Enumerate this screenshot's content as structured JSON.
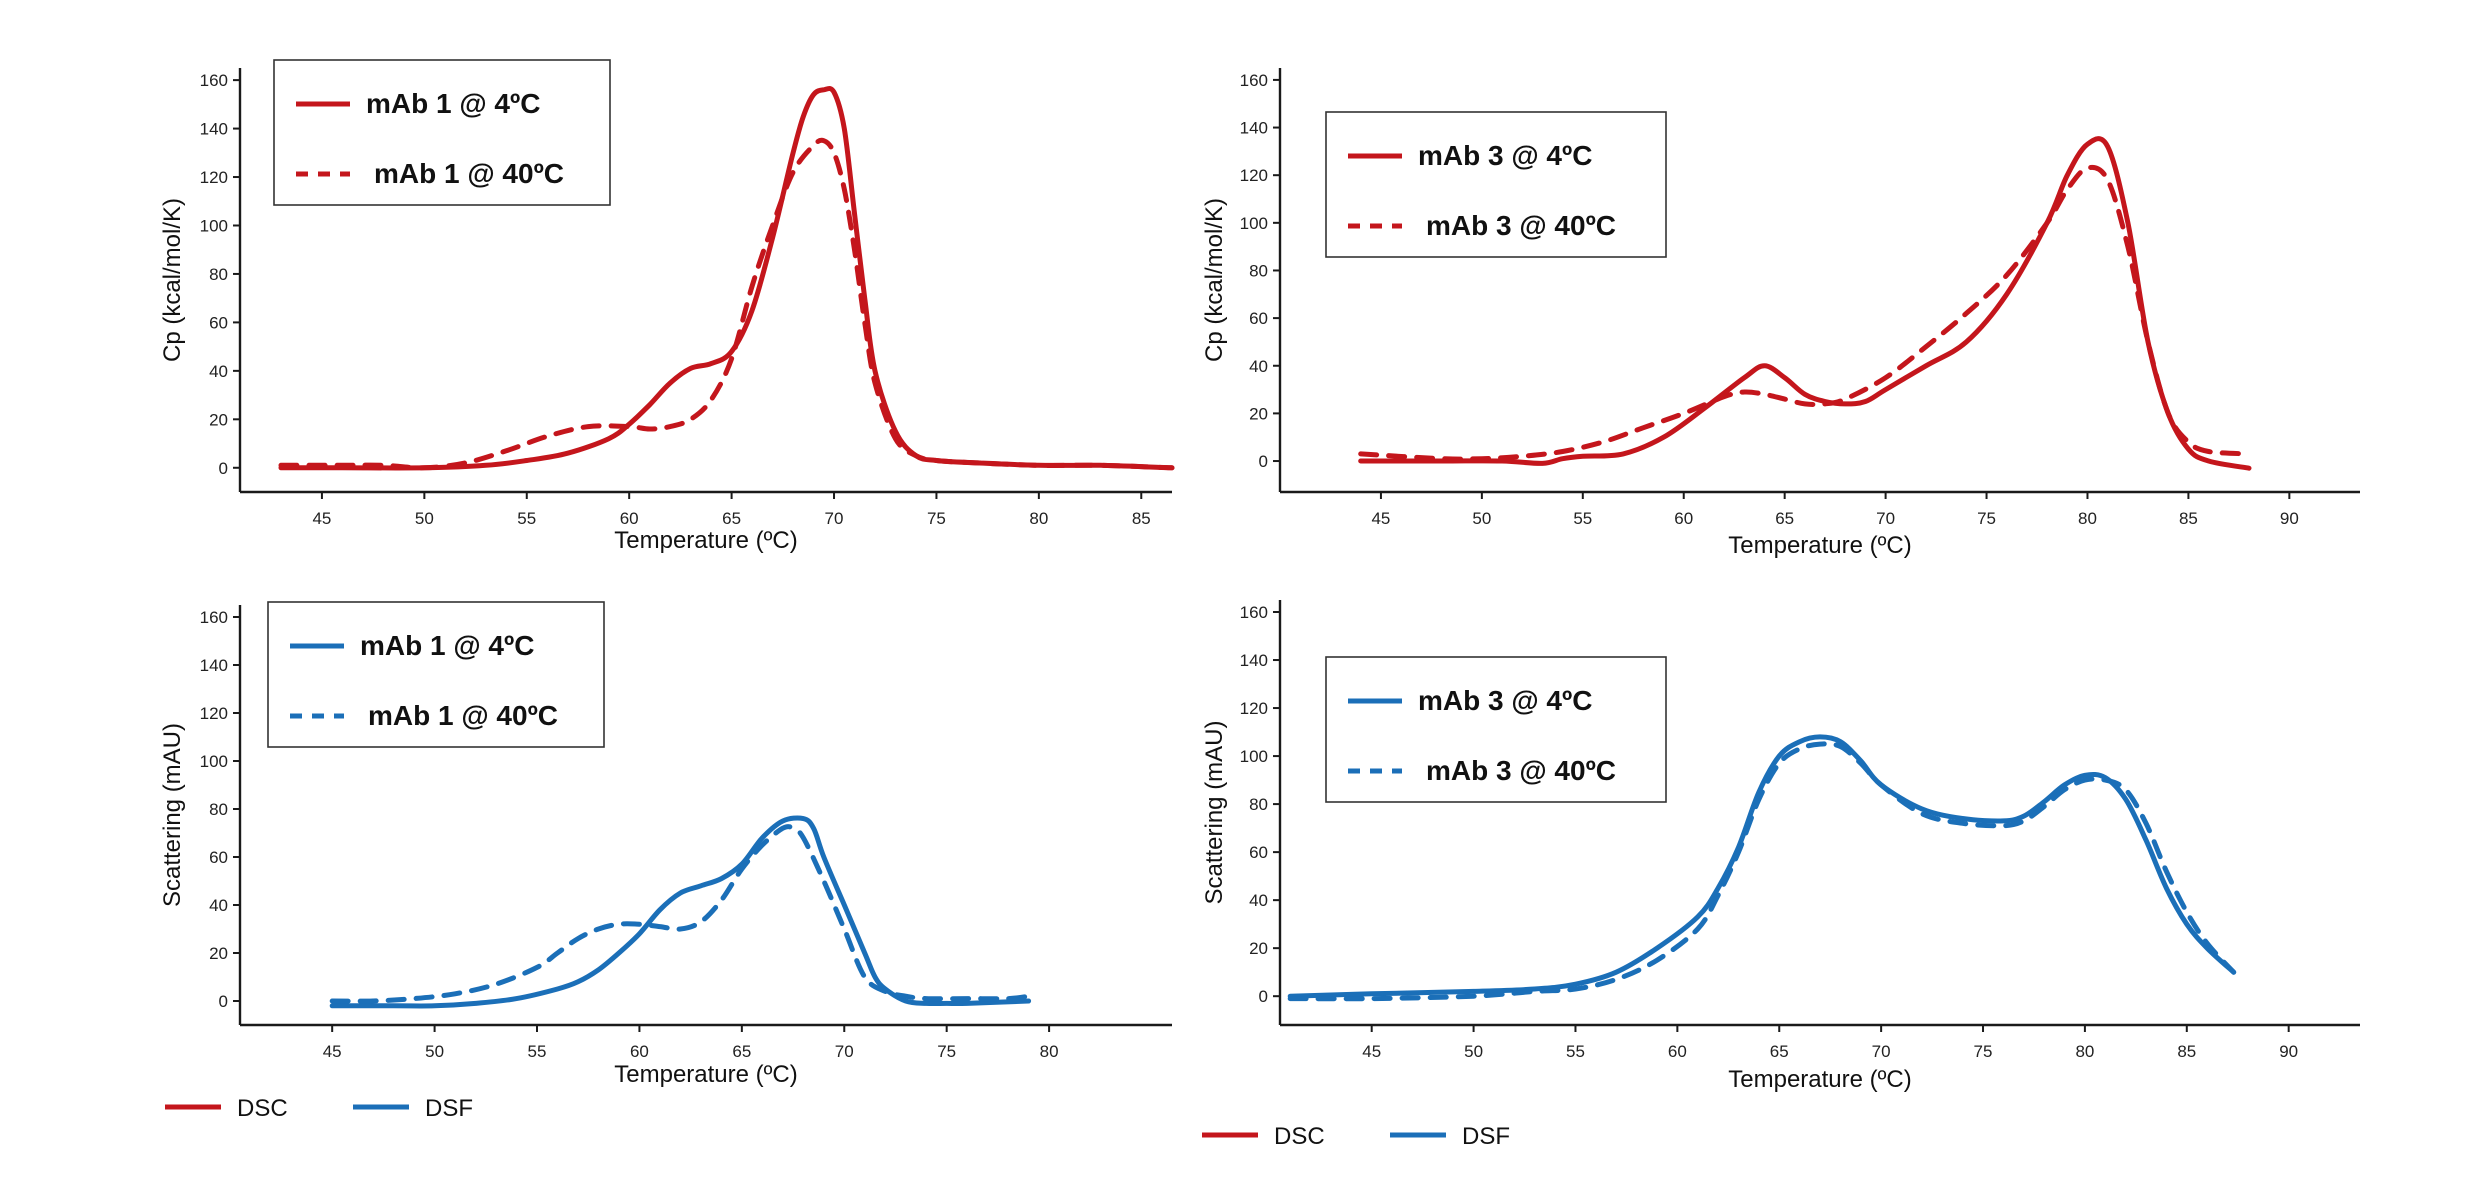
{
  "colors": {
    "dsc": "#c4161c",
    "dsf": "#1b6fb8"
  },
  "chart_data": [
    {
      "id": "p1",
      "type": "line",
      "method": "DSC",
      "xlabel": "Temperature (ºC)",
      "ylabel": "Cp (kcal/mol/K)",
      "xlim": [
        41,
        86.5
      ],
      "ylim": [
        -10,
        165
      ],
      "xticks": [
        45,
        50,
        55,
        60,
        65,
        70,
        75,
        80,
        85
      ],
      "yticks": [
        0,
        20,
        40,
        60,
        80,
        100,
        120,
        140,
        160
      ],
      "series": [
        {
          "name": "mAb 1 @ 4ºC",
          "style": "solid",
          "x": [
            43,
            46,
            50,
            53,
            55,
            57,
            59,
            60,
            61,
            62,
            63,
            64,
            65,
            66,
            67,
            68,
            68.5,
            69,
            69.5,
            70,
            70.5,
            71,
            71.5,
            72,
            73,
            74,
            75,
            77,
            80,
            83,
            86.5
          ],
          "y": [
            0,
            0,
            0,
            1,
            3,
            6,
            12,
            18,
            26,
            35,
            41,
            43,
            48,
            65,
            95,
            130,
            145,
            154,
            156,
            155,
            140,
            105,
            70,
            40,
            15,
            5,
            3,
            2,
            1,
            1,
            0
          ]
        },
        {
          "name": "mAb 1 @ 40ºC",
          "style": "dashed",
          "x": [
            43,
            46,
            48,
            50,
            52,
            54,
            56,
            58,
            60,
            61,
            62,
            63,
            64,
            65,
            66,
            67,
            68,
            69,
            69.5,
            70,
            70.5,
            71,
            71.5,
            72,
            73,
            74,
            75,
            77,
            80,
            83,
            86.5
          ],
          "y": [
            1,
            1,
            1,
            0,
            2,
            7,
            13,
            17,
            17,
            16,
            17,
            20,
            28,
            45,
            75,
            100,
            122,
            133,
            135,
            130,
            115,
            90,
            60,
            35,
            12,
            5,
            3,
            2,
            1,
            1,
            0
          ]
        }
      ],
      "legend": [
        "mAb 1 @ 4ºC",
        "mAb 1 @ 40ºC"
      ]
    },
    {
      "id": "p2",
      "type": "line",
      "method": "DSC",
      "xlabel": "Temperature (ºC)",
      "ylabel": "Cp (kcal/mol/K)",
      "xlim": [
        40,
        93.5
      ],
      "ylim": [
        -13,
        165
      ],
      "xticks": [
        45,
        50,
        55,
        60,
        65,
        70,
        75,
        80,
        85,
        90
      ],
      "yticks": [
        0,
        20,
        40,
        60,
        80,
        100,
        120,
        140,
        160
      ],
      "series": [
        {
          "name": "mAb 3 @ 4ºC",
          "style": "solid",
          "x": [
            44,
            48,
            51,
            53,
            54,
            55,
            57,
            59,
            61,
            63,
            64,
            65,
            66,
            67,
            68,
            69,
            70,
            72,
            74,
            76,
            78,
            79,
            80,
            81,
            82,
            83,
            84,
            85,
            86,
            88
          ],
          "y": [
            0,
            0,
            0,
            -1,
            1,
            2,
            3,
            10,
            22,
            35,
            40,
            35,
            28,
            25,
            24,
            25,
            30,
            40,
            50,
            70,
            100,
            120,
            133,
            132,
            100,
            50,
            20,
            5,
            0,
            -3
          ]
        },
        {
          "name": "mAb 3 @ 40ºC",
          "style": "dashed",
          "x": [
            44,
            48,
            50,
            52,
            54,
            56,
            58,
            60,
            62,
            63,
            64,
            65,
            66,
            67,
            68,
            70,
            72,
            74,
            76,
            78,
            79,
            80,
            81,
            82,
            83,
            84,
            85,
            86,
            88
          ],
          "y": [
            3,
            1,
            1,
            2,
            4,
            8,
            14,
            20,
            27,
            29,
            28,
            26,
            24,
            24,
            26,
            35,
            48,
            62,
            78,
            100,
            114,
            123,
            118,
            90,
            50,
            20,
            8,
            4,
            3
          ]
        }
      ],
      "legend": [
        "mAb 3 @ 4ºC",
        "mAb 3 @ 40ºC"
      ]
    },
    {
      "id": "p3",
      "type": "line",
      "method": "DSF",
      "xlabel": "Temperature (ºC)",
      "ylabel": "Scattering (mAU)",
      "xlim": [
        40.5,
        86
      ],
      "ylim": [
        -10,
        165
      ],
      "xticks": [
        45,
        50,
        55,
        60,
        65,
        70,
        75,
        80
      ],
      "yticks": [
        0,
        20,
        40,
        60,
        80,
        100,
        120,
        140,
        160
      ],
      "series": [
        {
          "name": "mAb 1 @ 4ºC",
          "style": "solid",
          "x": [
            45,
            48,
            50,
            52,
            54,
            56,
            57,
            58,
            59,
            60,
            61,
            62,
            63,
            64,
            65,
            66,
            67,
            68,
            68.5,
            69,
            70,
            71,
            71.5,
            72,
            73,
            74,
            75,
            76,
            79
          ],
          "y": [
            -2,
            -2,
            -2,
            -1,
            1,
            5,
            8,
            13,
            20,
            28,
            38,
            45,
            48,
            51,
            57,
            68,
            75,
            76,
            72,
            60,
            40,
            20,
            10,
            5,
            0,
            -1,
            -1,
            -1,
            0
          ]
        },
        {
          "name": "mAb 1 @ 40ºC",
          "style": "dashed",
          "x": [
            45,
            47,
            49,
            51,
            53,
            55,
            56,
            57,
            58,
            59,
            60,
            61,
            62,
            63,
            64,
            65,
            66,
            67,
            67.5,
            68,
            69,
            70,
            71,
            72,
            73,
            74,
            76,
            78,
            79
          ],
          "y": [
            0,
            0,
            1,
            3,
            7,
            14,
            20,
            26,
            30,
            32,
            32,
            31,
            30,
            33,
            42,
            55,
            65,
            72,
            72,
            68,
            50,
            30,
            10,
            4,
            2,
            1,
            1,
            1,
            2
          ]
        }
      ],
      "legend": [
        "mAb 1 @ 4ºC",
        "mAb 1 @ 40ºC"
      ]
    },
    {
      "id": "p4",
      "type": "line",
      "method": "DSF",
      "xlabel": "Temperature (ºC)",
      "ylabel": "Scattering (mAU)",
      "xlim": [
        40.5,
        93.5
      ],
      "ylim": [
        -12,
        165
      ],
      "xticks": [
        45,
        50,
        55,
        60,
        65,
        70,
        75,
        80,
        85,
        90
      ],
      "yticks": [
        0,
        20,
        40,
        60,
        80,
        100,
        120,
        140,
        160
      ],
      "series": [
        {
          "name": "mAb 3 @ 4ºC",
          "style": "solid",
          "x": [
            41,
            45,
            50,
            53,
            55,
            57,
            59,
            61,
            62,
            63,
            64,
            65,
            66,
            67,
            68,
            69,
            70,
            72,
            74,
            76,
            77,
            78,
            79,
            80,
            81,
            82,
            83,
            84,
            85,
            86,
            87.3
          ],
          "y": [
            0,
            1,
            2,
            3,
            5,
            10,
            20,
            33,
            45,
            62,
            85,
            100,
            106,
            108,
            106,
            98,
            88,
            78,
            74,
            73,
            75,
            81,
            88,
            92,
            91,
            82,
            65,
            45,
            30,
            20,
            10
          ]
        },
        {
          "name": "mAb 3 @ 40ºC",
          "style": "dashed",
          "x": [
            41,
            45,
            50,
            53,
            55,
            57,
            59,
            61,
            62,
            63,
            64,
            65,
            66,
            67,
            68,
            69,
            70,
            72,
            74,
            76,
            77,
            78,
            79,
            80,
            81,
            82,
            83,
            84,
            85,
            86,
            87.3
          ],
          "y": [
            -1,
            -1,
            0,
            2,
            3,
            7,
            15,
            28,
            42,
            60,
            82,
            97,
            103,
            105,
            104,
            97,
            88,
            76,
            72,
            71,
            73,
            79,
            86,
            90,
            90,
            86,
            72,
            52,
            35,
            22,
            10
          ]
        }
      ],
      "legend": [
        "mAb 3 @ 4ºC",
        "mAb 3 @ 40ºC"
      ]
    }
  ],
  "bottom_legend": [
    {
      "items": [
        {
          "label": "DSC",
          "color": "#c4161c"
        },
        {
          "label": "DSF",
          "color": "#1b6fb8"
        }
      ]
    },
    {
      "items": [
        {
          "label": "DSC",
          "color": "#c4161c"
        },
        {
          "label": "DSF",
          "color": "#1b6fb8"
        }
      ]
    }
  ]
}
